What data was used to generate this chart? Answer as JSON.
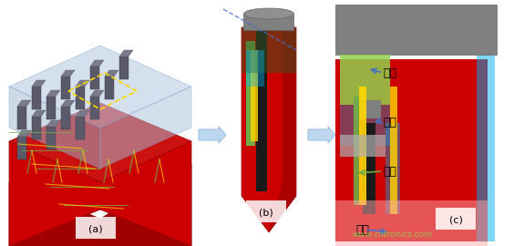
{
  "bg_color": "#ffffff",
  "panel_a_label": "(a)",
  "panel_b_label": "(b)",
  "panel_c_label": "(c)",
  "labels_c": [
    "漏极",
    "源极",
    "栅极",
    "衬底"
  ],
  "arrow_color_blue": "#4472C4",
  "arrow_color_green": "#70AD47",
  "watermark": "www.cntronics.com",
  "watermark_color": "#92D050",
  "dashed_line_color": "#4472C4",
  "fig_width": 5.64,
  "fig_height": 2.7,
  "dpi": 100
}
